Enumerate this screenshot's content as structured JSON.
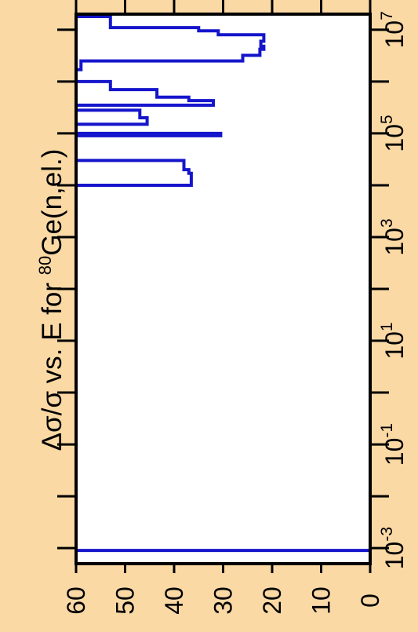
{
  "chart_data": {
    "type": "line",
    "orientation": "rotated-90",
    "title": {
      "prefix": "Δσ/σ vs. E for ",
      "isotope_mass": "80",
      "element": "Ge",
      "reaction": "(n,el.)"
    },
    "x_axis": {
      "scale": "log",
      "range": [
        0.0005,
        20000000
      ],
      "tick_labels": [
        {
          "value": 0.001,
          "base": "10",
          "exp": "-3"
        },
        {
          "value": 0.1,
          "base": "10",
          "exp": "-1"
        },
        {
          "value": 10,
          "base": "10",
          "exp": "1"
        },
        {
          "value": 1000,
          "base": "10",
          "exp": "3"
        },
        {
          "value": 100000,
          "base": "10",
          "exp": "5"
        },
        {
          "value": 10000000,
          "base": "10",
          "exp": "7"
        }
      ],
      "minor_ticks": [
        0.01,
        1,
        100,
        10000,
        1000000
      ]
    },
    "y_axis": {
      "range": [
        0,
        60
      ],
      "tick_labels": [
        "0",
        "10",
        "20",
        "30",
        "40",
        "50",
        "60"
      ],
      "tick_values": [
        0,
        10,
        20,
        30,
        40,
        50,
        60
      ]
    },
    "series": [
      {
        "color": "#1515CC",
        "step_points": [
          [
            0.0009,
            60
          ],
          [
            0.0009,
            0
          ],
          [
            20000000,
            0
          ],
          [
            20000000,
            60
          ],
          [
            18000000,
            60
          ],
          [
            18000000,
            53
          ],
          [
            11000000,
            53
          ],
          [
            11000000,
            35
          ],
          [
            9500000,
            35
          ],
          [
            9500000,
            31
          ],
          [
            8000000,
            31
          ],
          [
            8000000,
            21.7
          ],
          [
            6000000,
            21.7
          ],
          [
            6000000,
            22.3
          ],
          [
            4800000,
            22.3
          ],
          [
            4800000,
            21.7
          ],
          [
            4200000,
            21.7
          ],
          [
            4200000,
            22.5
          ],
          [
            3200000,
            22.5
          ],
          [
            3200000,
            26
          ],
          [
            2500000,
            26
          ],
          [
            2500000,
            59
          ],
          [
            1700000,
            59
          ],
          [
            1700000,
            60
          ],
          [
            1000000,
            60
          ],
          [
            1000000,
            53
          ],
          [
            700000,
            53
          ],
          [
            700000,
            43.5
          ],
          [
            500000,
            43.5
          ],
          [
            500000,
            37
          ],
          [
            430000,
            37
          ],
          [
            430000,
            32
          ],
          [
            350000,
            32
          ],
          [
            350000,
            60
          ],
          [
            280000,
            60
          ],
          [
            280000,
            47
          ],
          [
            200000,
            47
          ],
          [
            200000,
            45.5
          ],
          [
            150000,
            45.5
          ],
          [
            150000,
            60
          ],
          [
            100000,
            60
          ],
          [
            100000,
            30.5
          ],
          [
            90000,
            30.5
          ],
          [
            90000,
            60
          ],
          [
            30000,
            60
          ],
          [
            30000,
            38
          ],
          [
            20000,
            38
          ],
          [
            20000,
            37
          ],
          [
            17000,
            37
          ],
          [
            17000,
            36.5
          ],
          [
            10000,
            36.5
          ],
          [
            10000,
            60
          ]
        ]
      }
    ]
  }
}
